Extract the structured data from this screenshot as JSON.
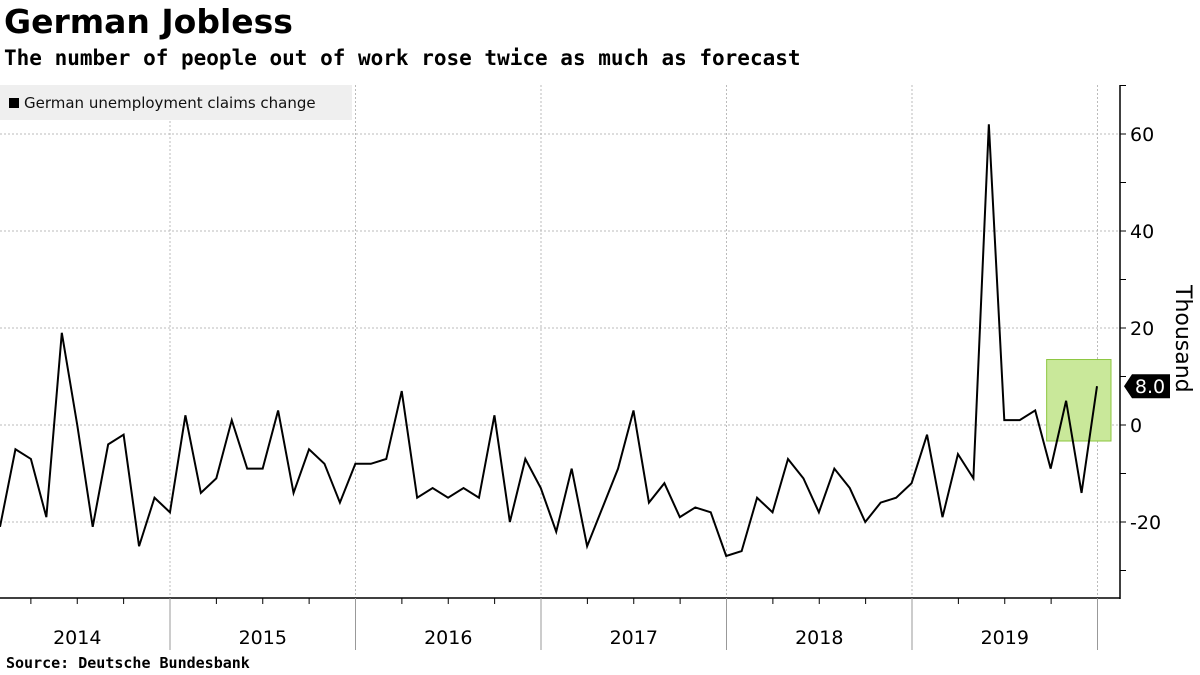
{
  "title": "German Jobless",
  "subtitle": "The number of people out of work rose twice as much as forecast",
  "source": "Source:  Deutsche Bundesbank",
  "colors": {
    "line": "#000000",
    "highlight": "#c9e89a",
    "highlight_border": "#8cc63f",
    "grid": "#bbbbbb"
  },
  "chart_data": {
    "type": "line",
    "title": "German Jobless",
    "ylabel": "Thousand",
    "xlabel": "",
    "ylim": [
      -36,
      70
    ],
    "yticks": [
      60,
      40,
      20,
      0,
      -20
    ],
    "ytick_labels": [
      "60",
      "40",
      "20",
      "0",
      "-20"
    ],
    "year_labels": [
      "2014",
      "2015",
      "2016",
      "2017",
      "2018",
      "2019"
    ],
    "grid": true,
    "legend": "top-left",
    "series": [
      {
        "name": "German unemployment claims change",
        "values": [
          -21,
          -5,
          -7,
          -19,
          19,
          0,
          -21,
          -4,
          -2,
          -25,
          -15,
          -18,
          2,
          -14,
          -11,
          1,
          -9,
          -9,
          3,
          -14,
          -5,
          -8,
          -16,
          -8,
          -8,
          -7,
          7,
          -15,
          -13,
          -15,
          -13,
          -15,
          2,
          -20,
          -7,
          -13,
          -22,
          -9,
          -25,
          -17,
          -9,
          3,
          -16,
          -12,
          -19,
          -17,
          -18,
          -27,
          -26,
          -15,
          -18,
          -7,
          -11,
          -18,
          -9,
          -13,
          -20,
          -16,
          -15,
          -12,
          -2,
          -19,
          -6,
          -11,
          62,
          1,
          1,
          3,
          -9,
          5,
          -14,
          8
        ]
      }
    ],
    "last_value_label": "8.0",
    "highlight_range": {
      "from_index": 68,
      "to_index": 71,
      "y_from": -3.3,
      "y_to": 13.5
    }
  }
}
